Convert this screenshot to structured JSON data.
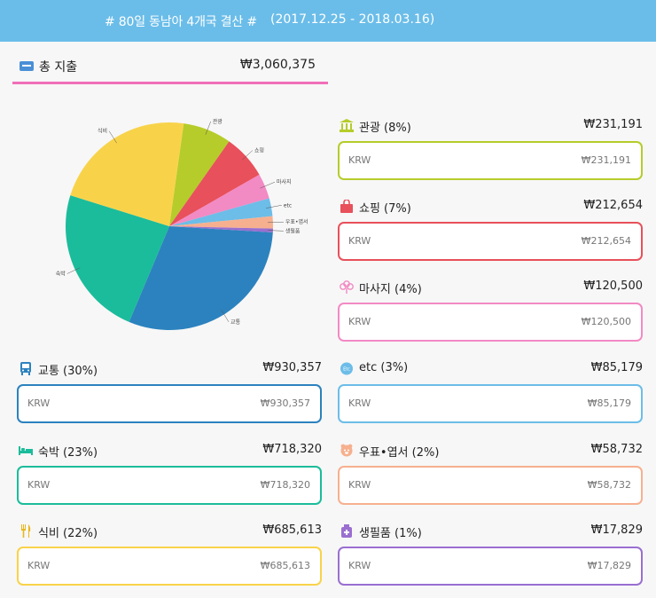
{
  "header": {
    "title": "# 80일 동남아 4개국 결산 #",
    "date_range": "(2017.12.25 - 2018.03.16)"
  },
  "total": {
    "label": "총 지출",
    "value": "₩3,060,375"
  },
  "chart_data": {
    "type": "pie",
    "slices": [
      {
        "label": "관광",
        "value": 231191,
        "color": "#b6cc2a"
      },
      {
        "label": "쇼핑",
        "value": 212654,
        "color": "#e8505b"
      },
      {
        "label": "마사지",
        "value": 120500,
        "color": "#f28ac4"
      },
      {
        "label": "etc",
        "value": 85179,
        "color": "#6cbde8"
      },
      {
        "label": "우표•엽서",
        "value": 58732,
        "color": "#f6b08f"
      },
      {
        "label": "생필품",
        "value": 17829,
        "color": "#9a6fd0"
      },
      {
        "label": "교통",
        "value": 930357,
        "color": "#2c82be"
      },
      {
        "label": "숙박",
        "value": 718320,
        "color": "#1bbc9b"
      },
      {
        "label": "식비",
        "value": 685613,
        "color": "#f8d34a"
      }
    ]
  },
  "cards": {
    "sightseeing": {
      "label": "관광 (8%)",
      "amount": "₩231,191",
      "currency": "KRW",
      "value": "₩231,191",
      "color": "#b6cc2a",
      "icon": "museum-icon"
    },
    "shopping": {
      "label": "쇼핑 (7%)",
      "amount": "₩212,654",
      "currency": "KRW",
      "value": "₩212,654",
      "color": "#e8505b",
      "icon": "shopping-bag-icon"
    },
    "massage": {
      "label": "마사지 (4%)",
      "amount": "₩120,500",
      "currency": "KRW",
      "value": "₩120,500",
      "color": "#f28ac4",
      "icon": "flower-icon"
    },
    "transport": {
      "label": "교통 (30%)",
      "amount": "₩930,357",
      "currency": "KRW",
      "value": "₩930,357",
      "color": "#2c82be",
      "icon": "bus-icon"
    },
    "etc": {
      "label": "etc (3%)",
      "amount": "₩85,179",
      "currency": "KRW",
      "value": "₩85,179",
      "color": "#6cbde8",
      "icon": "etc-circle-icon"
    },
    "lodging": {
      "label": "숙박 (23%)",
      "amount": "₩718,320",
      "currency": "KRW",
      "value": "₩718,320",
      "color": "#1bbc9b",
      "icon": "bed-icon"
    },
    "postcard": {
      "label": "우표•엽서 (2%)",
      "amount": "₩58,732",
      "currency": "KRW",
      "value": "₩58,732",
      "color": "#f6b08f",
      "icon": "stamp-icon"
    },
    "food": {
      "label": "식비 (22%)",
      "amount": "₩685,613",
      "currency": "KRW",
      "value": "₩685,613",
      "color": "#f8d34a",
      "icon": "fork-knife-icon"
    },
    "necessities": {
      "label": "생필품 (1%)",
      "amount": "₩17,829",
      "currency": "KRW",
      "value": "₩17,829",
      "color": "#9a6fd0",
      "icon": "toiletries-icon"
    }
  }
}
